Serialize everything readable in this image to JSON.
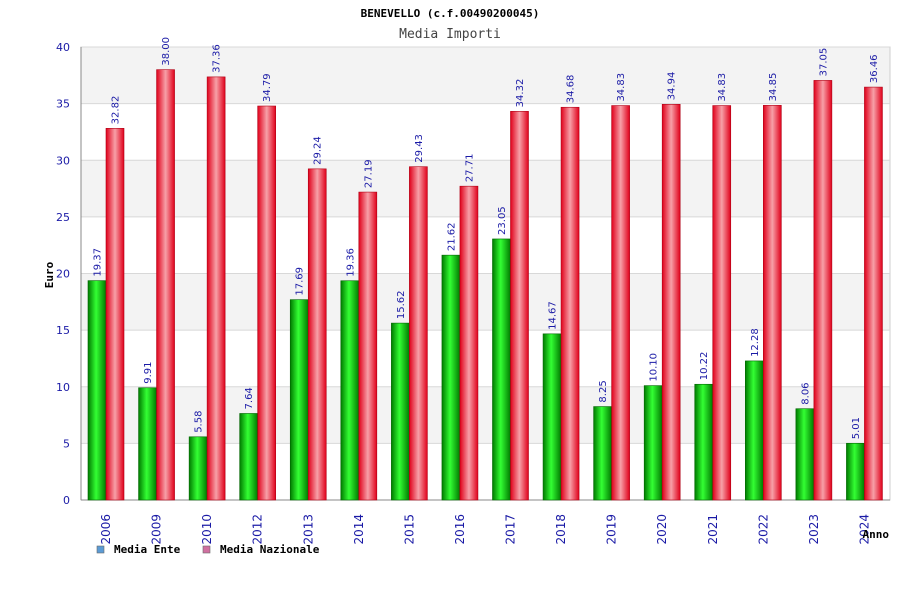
{
  "chart_data": {
    "type": "bar",
    "title": "BENEVELLO (c.f.00490200045)",
    "subtitle": "Media Importi",
    "ylabel": "Euro",
    "xlabel": "Anno",
    "ylim": [
      0,
      40
    ],
    "yticks": [
      "0",
      "5",
      "10",
      "15",
      "20",
      "25",
      "30",
      "35",
      "40"
    ],
    "categories": [
      "2006",
      "2009",
      "2010",
      "2012",
      "2013",
      "2014",
      "2015",
      "2016",
      "2017",
      "2018",
      "2019",
      "2020",
      "2021",
      "2022",
      "2023",
      "2024"
    ],
    "series": [
      {
        "name": "Media Ente",
        "color": "#00b300",
        "legend_color": "#5b9bd5",
        "values": [
          19.37,
          9.91,
          5.58,
          7.64,
          17.69,
          19.36,
          15.62,
          21.62,
          23.05,
          14.67,
          8.25,
          10.1,
          10.22,
          12.28,
          8.06,
          5.01
        ],
        "labels": [
          "19.37",
          "9.91",
          "5.58",
          "7.64",
          "17.69",
          "19.36",
          "15.62",
          "21.62",
          "23.05",
          "14.67",
          "8.25",
          "10.10",
          "10.22",
          "12.28",
          "8.06",
          "5.01"
        ]
      },
      {
        "name": "Media Nazionale",
        "color": "#e8001c",
        "legend_color": "#d070a0",
        "values": [
          32.82,
          38.0,
          37.36,
          34.79,
          29.24,
          27.19,
          29.43,
          27.71,
          34.32,
          34.68,
          34.83,
          34.94,
          34.83,
          34.85,
          37.05,
          36.46
        ],
        "labels": [
          "32.82",
          "38.00",
          "37.36",
          "34.79",
          "29.24",
          "27.19",
          "29.43",
          "27.71",
          "34.32",
          "34.68",
          "34.83",
          "34.94",
          "34.83",
          "34.85",
          "37.05",
          "36.46"
        ]
      }
    ],
    "grid": true,
    "legend_position": "bottom-left"
  }
}
